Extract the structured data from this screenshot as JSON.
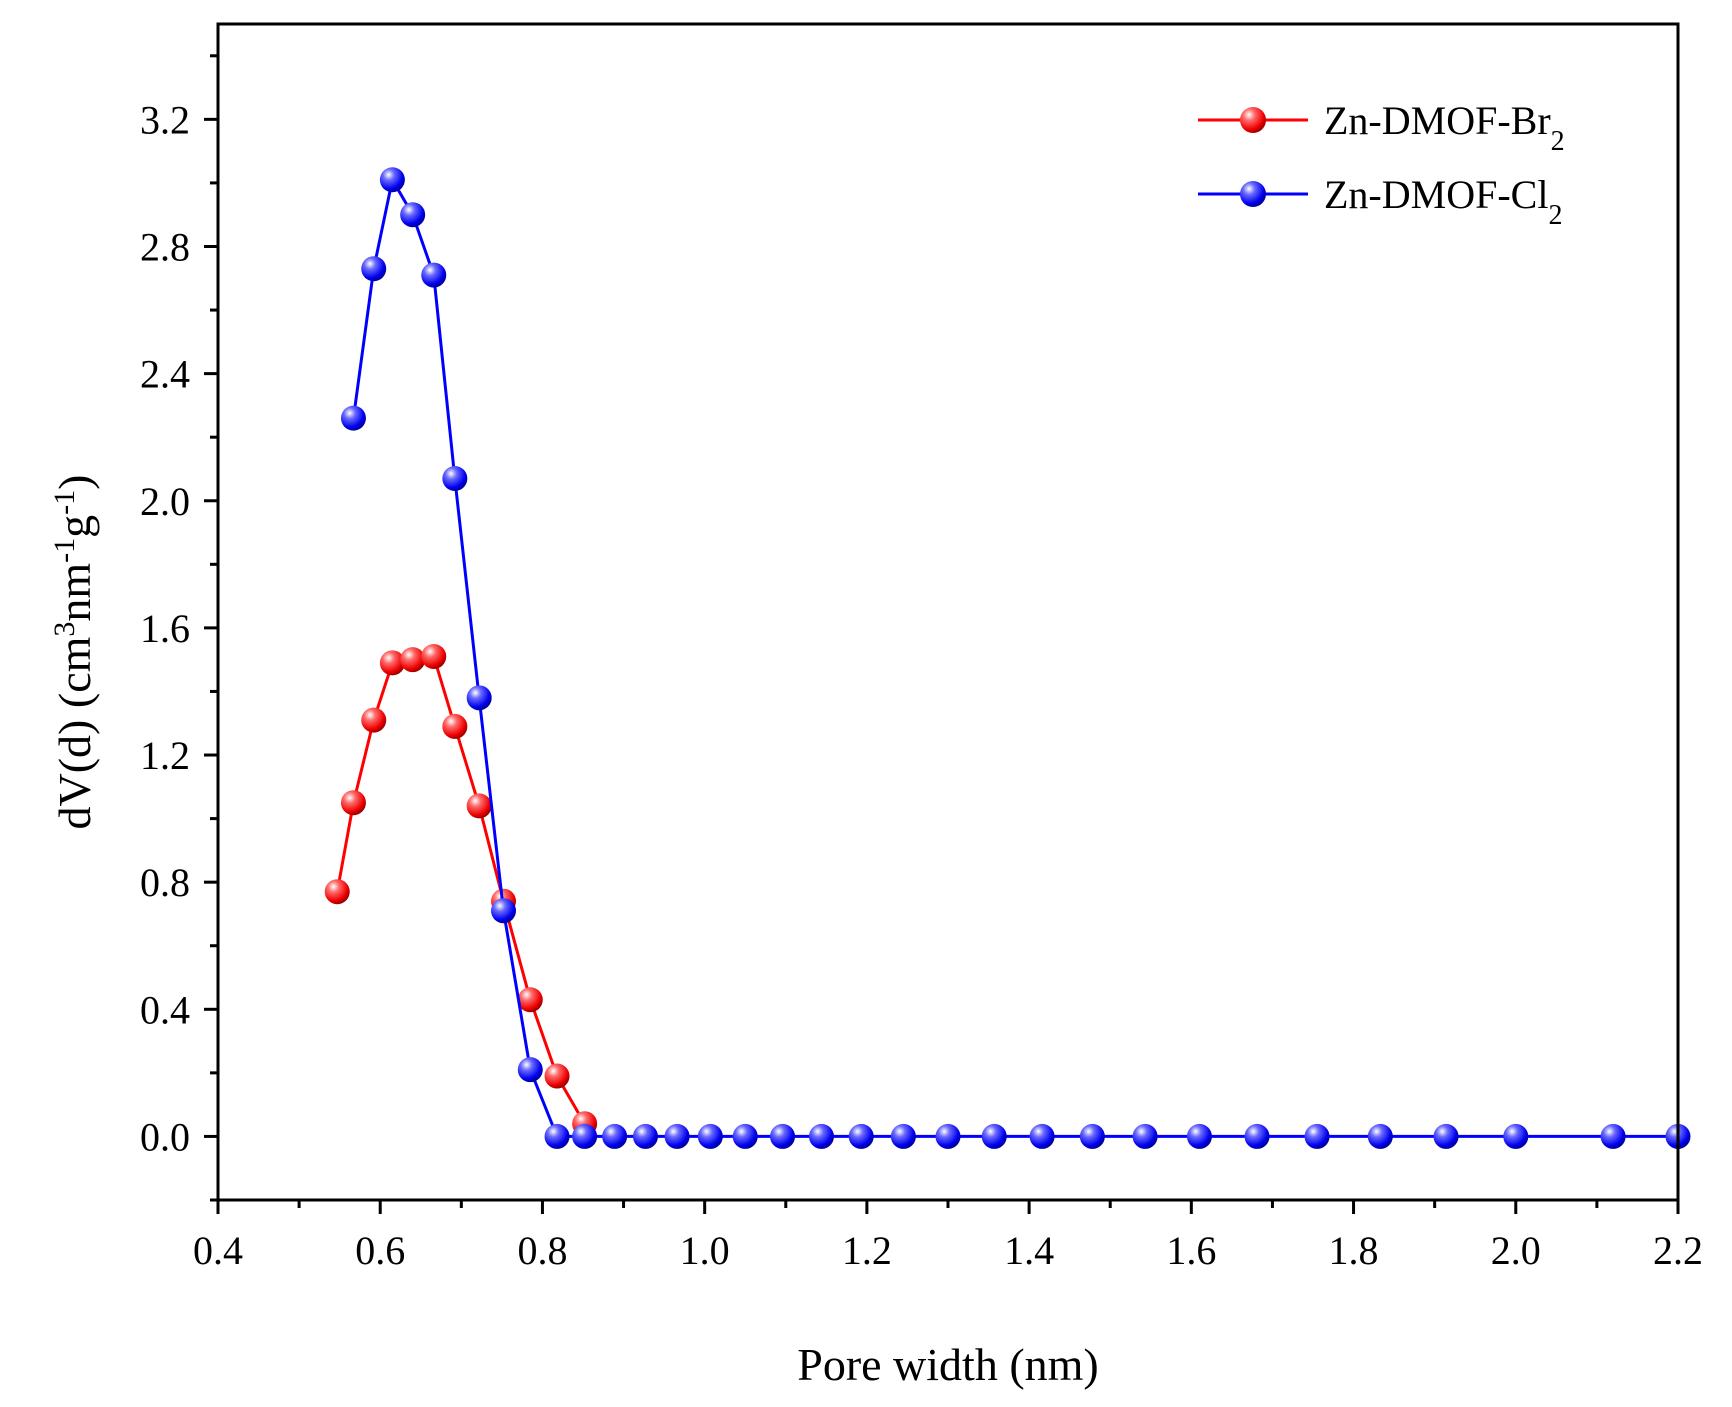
{
  "chart_data": {
    "type": "line",
    "xlabel": "Pore width (nm)",
    "ylabel": {
      "base": "dV(d) (cm",
      "sup1": "3",
      "mid": "nm",
      "sup2": "-1",
      "g": "g",
      "sup3": "-1",
      "end": ")"
    },
    "xlim": [
      0.4,
      2.2
    ],
    "ylim": [
      -0.2,
      3.5
    ],
    "xticks": [
      "0.4",
      "0.6",
      "0.8",
      "1.0",
      "1.2",
      "1.4",
      "1.6",
      "1.8",
      "2.0",
      "2.2"
    ],
    "xtick_values": [
      0.4,
      0.6,
      0.8,
      1.0,
      1.2,
      1.4,
      1.6,
      1.8,
      2.0,
      2.2
    ],
    "yticks": [
      "0.0",
      "0.4",
      "0.8",
      "1.2",
      "1.6",
      "2.0",
      "2.4",
      "2.8",
      "3.2"
    ],
    "ytick_values": [
      0.0,
      0.4,
      0.8,
      1.2,
      1.6,
      2.0,
      2.4,
      2.8,
      3.2
    ],
    "legend_position": "top-right",
    "series": [
      {
        "name": "Zn-DMOF-Br",
        "name_sub": "2",
        "color": "#ff0000",
        "x": [
          0.547,
          0.567,
          0.592,
          0.615,
          0.64,
          0.666,
          0.692,
          0.722,
          0.752,
          0.785,
          0.818,
          0.852
        ],
        "y": [
          0.77,
          1.05,
          1.31,
          1.49,
          1.5,
          1.51,
          1.29,
          1.04,
          0.74,
          0.43,
          0.19,
          0.04
        ]
      },
      {
        "name": "Zn-DMOF-Cl",
        "name_sub": "2",
        "color": "#0000ff",
        "x": [
          0.567,
          0.592,
          0.615,
          0.64,
          0.666,
          0.692,
          0.722,
          0.752,
          0.785,
          0.818,
          0.852,
          0.889,
          0.927,
          0.966,
          1.007,
          1.05,
          1.096,
          1.144,
          1.193,
          1.245,
          1.3,
          1.357,
          1.416,
          1.478,
          1.543,
          1.61,
          1.681,
          1.755,
          1.833,
          1.914,
          2.0,
          2.12,
          2.2
        ],
        "y": [
          2.26,
          2.73,
          3.01,
          2.9,
          2.71,
          2.07,
          1.38,
          0.71,
          0.21,
          0.0,
          0.0,
          0.0,
          0.0,
          0.0,
          0.0,
          0.0,
          0.0,
          0.0,
          0.0,
          0.0,
          0.0,
          0.0,
          0.0,
          0.0,
          0.0,
          0.0,
          0.0,
          0.0,
          0.0,
          0.0,
          0.0,
          0.0,
          0.0
        ]
      }
    ]
  }
}
